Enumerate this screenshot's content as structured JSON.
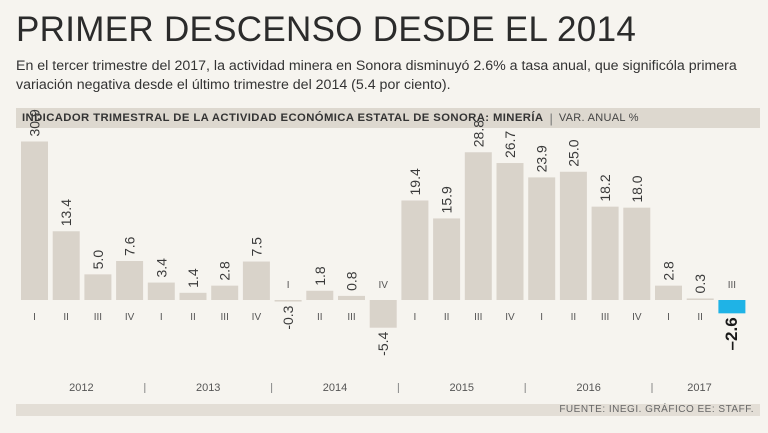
{
  "header": {
    "title": "PRIMER DESCENSO DESDE EL 2014",
    "subtitle": "En el tercer trimestre del 2017, la actividad minera en Sonora disminuyó 2.6% a tasa anual, que significóla primera variación negativa desde el último trimestre del 2014 (5.4 por ciento).",
    "indicator": "INDICADOR TRIMESTRAL DE LA ACTIVIDAD ECONÓMICA ESTATAL DE SONORA: MINERÍA",
    "separator": "|",
    "unit": "VAR. ANUAL %"
  },
  "colors": {
    "bar": "#d9d3ca",
    "highlight": "#1fb3e6",
    "highlight_label": "#1a1a1a"
  },
  "chart_data": {
    "type": "bar",
    "title": "INDICADOR TRIMESTRAL DE LA ACTIVIDAD ECONÓMICA ESTATAL DE SONORA: MINERÍA",
    "ylabel": "VAR. ANUAL %",
    "ylim": [
      -10,
      32
    ],
    "grid": false,
    "quarters": [
      "I",
      "II",
      "III",
      "IV",
      "I",
      "II",
      "III",
      "IV",
      "I",
      "II",
      "III",
      "IV",
      "I",
      "II",
      "III",
      "IV",
      "I",
      "II",
      "III",
      "IV",
      "I",
      "II",
      "III"
    ],
    "values": [
      30.9,
      13.4,
      5.0,
      7.6,
      3.4,
      1.4,
      2.8,
      7.5,
      -0.3,
      1.8,
      0.8,
      -5.4,
      19.4,
      15.9,
      28.8,
      26.7,
      23.9,
      25.0,
      18.2,
      18.0,
      2.8,
      0.3,
      -2.6
    ],
    "value_labels": [
      "30.9",
      "13.4",
      "5.0",
      "7.6",
      "3.4",
      "1.4",
      "2.8",
      "7.5",
      "-0.3",
      "1.8",
      "0.8",
      "-5.4",
      "19.4",
      "15.9",
      "28.8",
      "26.7",
      "23.9",
      "25.0",
      "18.2",
      "18.0",
      "2.8",
      "0.3",
      "–2.6"
    ],
    "years": [
      {
        "label": "2012",
        "quarters": 4
      },
      {
        "label": "2013",
        "quarters": 4
      },
      {
        "label": "2014",
        "quarters": 4
      },
      {
        "label": "2015",
        "quarters": 4
      },
      {
        "label": "2016",
        "quarters": 4
      },
      {
        "label": "2017",
        "quarters": 3
      }
    ],
    "highlight_index": 22
  },
  "footer": {
    "source": "FUENTE: INEGI. GRÁFICO EE: STAFF."
  }
}
